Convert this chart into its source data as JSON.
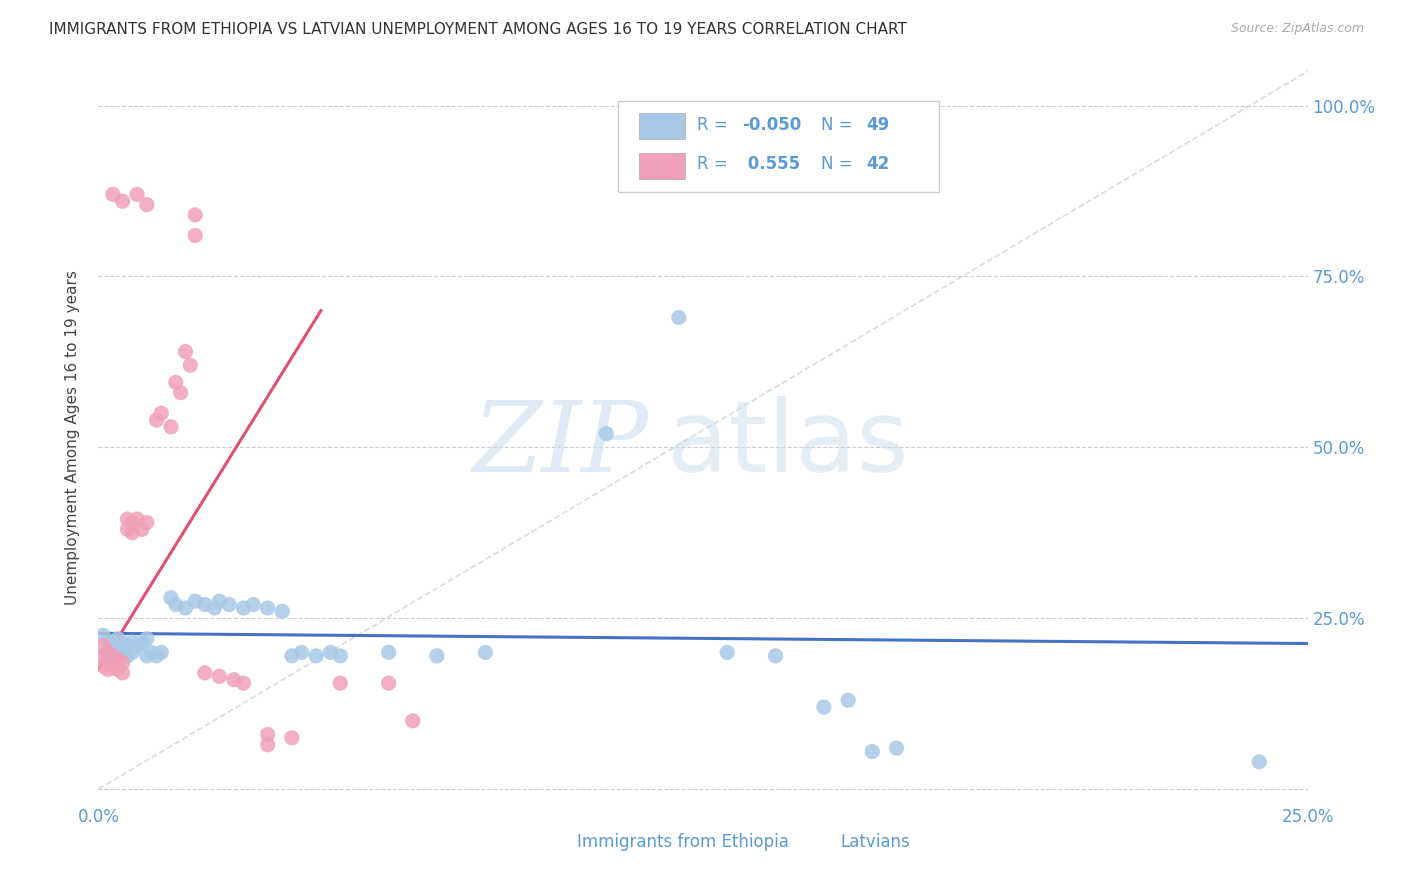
{
  "title": "IMMIGRANTS FROM ETHIOPIA VS LATVIAN UNEMPLOYMENT AMONG AGES 16 TO 19 YEARS CORRELATION CHART",
  "source": "Source: ZipAtlas.com",
  "ylabel": "Unemployment Among Ages 16 to 19 years",
  "xlim": [
    0.0,
    0.25
  ],
  "ylim": [
    -0.02,
    1.05
  ],
  "color_blue": "#a8c8e8",
  "color_pink": "#f0a0b8",
  "color_line_blue": "#4472c4",
  "color_line_pink": "#e05070",
  "watermark_zip": "ZIP",
  "watermark_atlas": "atlas",
  "legend_color": "#5b9bd5",
  "scatter_blue": [
    [
      0.001,
      0.225
    ],
    [
      0.002,
      0.215
    ],
    [
      0.002,
      0.2
    ],
    [
      0.003,
      0.21
    ],
    [
      0.003,
      0.195
    ],
    [
      0.004,
      0.22
    ],
    [
      0.004,
      0.205
    ],
    [
      0.005,
      0.215
    ],
    [
      0.005,
      0.2
    ],
    [
      0.006,
      0.21
    ],
    [
      0.006,
      0.195
    ],
    [
      0.007,
      0.215
    ],
    [
      0.007,
      0.2
    ],
    [
      0.008,
      0.21
    ],
    [
      0.009,
      0.215
    ],
    [
      0.01,
      0.22
    ],
    [
      0.01,
      0.195
    ],
    [
      0.011,
      0.2
    ],
    [
      0.012,
      0.195
    ],
    [
      0.013,
      0.2
    ],
    [
      0.015,
      0.28
    ],
    [
      0.016,
      0.27
    ],
    [
      0.018,
      0.265
    ],
    [
      0.02,
      0.275
    ],
    [
      0.022,
      0.27
    ],
    [
      0.024,
      0.265
    ],
    [
      0.025,
      0.275
    ],
    [
      0.027,
      0.27
    ],
    [
      0.03,
      0.265
    ],
    [
      0.032,
      0.27
    ],
    [
      0.035,
      0.265
    ],
    [
      0.038,
      0.26
    ],
    [
      0.04,
      0.195
    ],
    [
      0.042,
      0.2
    ],
    [
      0.045,
      0.195
    ],
    [
      0.048,
      0.2
    ],
    [
      0.05,
      0.195
    ],
    [
      0.06,
      0.2
    ],
    [
      0.07,
      0.195
    ],
    [
      0.08,
      0.2
    ],
    [
      0.105,
      0.52
    ],
    [
      0.12,
      0.69
    ],
    [
      0.13,
      0.2
    ],
    [
      0.14,
      0.195
    ],
    [
      0.15,
      0.12
    ],
    [
      0.155,
      0.13
    ],
    [
      0.16,
      0.055
    ],
    [
      0.165,
      0.06
    ],
    [
      0.24,
      0.04
    ]
  ],
  "scatter_pink": [
    [
      0.001,
      0.21
    ],
    [
      0.001,
      0.195
    ],
    [
      0.001,
      0.18
    ],
    [
      0.002,
      0.2
    ],
    [
      0.002,
      0.19
    ],
    [
      0.002,
      0.175
    ],
    [
      0.003,
      0.195
    ],
    [
      0.003,
      0.18
    ],
    [
      0.004,
      0.19
    ],
    [
      0.004,
      0.175
    ],
    [
      0.005,
      0.185
    ],
    [
      0.005,
      0.17
    ],
    [
      0.006,
      0.395
    ],
    [
      0.006,
      0.38
    ],
    [
      0.007,
      0.39
    ],
    [
      0.007,
      0.375
    ],
    [
      0.008,
      0.395
    ],
    [
      0.009,
      0.38
    ],
    [
      0.01,
      0.39
    ],
    [
      0.012,
      0.54
    ],
    [
      0.013,
      0.55
    ],
    [
      0.015,
      0.53
    ],
    [
      0.016,
      0.595
    ],
    [
      0.017,
      0.58
    ],
    [
      0.018,
      0.64
    ],
    [
      0.019,
      0.62
    ],
    [
      0.02,
      0.81
    ],
    [
      0.02,
      0.84
    ],
    [
      0.022,
      0.17
    ],
    [
      0.025,
      0.165
    ],
    [
      0.028,
      0.16
    ],
    [
      0.03,
      0.155
    ],
    [
      0.035,
      0.08
    ],
    [
      0.035,
      0.065
    ],
    [
      0.04,
      0.075
    ],
    [
      0.05,
      0.155
    ],
    [
      0.06,
      0.155
    ],
    [
      0.065,
      0.1
    ],
    [
      0.003,
      0.87
    ],
    [
      0.005,
      0.86
    ],
    [
      0.008,
      0.87
    ],
    [
      0.01,
      0.855
    ]
  ]
}
